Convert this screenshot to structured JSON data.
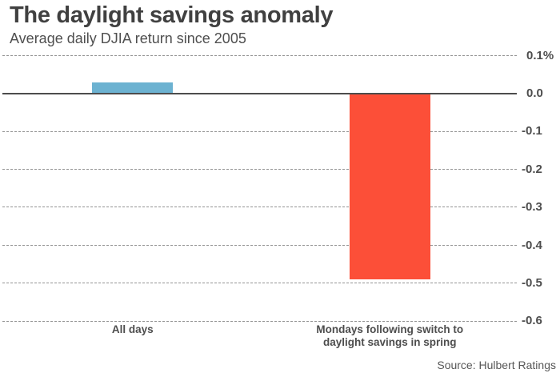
{
  "chart_data": {
    "type": "bar",
    "title": "The daylight savings anomaly",
    "subtitle": "Average daily DJIA return since 2005",
    "xlabel": "",
    "ylabel": "",
    "ylim": [
      -0.6,
      0.1
    ],
    "grid": "horizontal dashed gridlines, solid zero line",
    "legend": "none",
    "categories": [
      "All days",
      "Mondays following switch to daylight savings in spring"
    ],
    "values": [
      0.03,
      -0.49
    ],
    "bar_colors": [
      "#6cb2d1",
      "#fc4f38"
    ],
    "yticks": [
      {
        "value": 0.1,
        "label": "0.1%"
      },
      {
        "value": 0.0,
        "label": "0.0"
      },
      {
        "value": -0.1,
        "label": "-0.1"
      },
      {
        "value": -0.2,
        "label": "-0.2"
      },
      {
        "value": -0.3,
        "label": "-0.3"
      },
      {
        "value": -0.4,
        "label": "-0.4"
      },
      {
        "value": -0.5,
        "label": "-0.5"
      },
      {
        "value": -0.6,
        "label": "-0.6"
      }
    ],
    "source": "Source: Hulbert Ratings",
    "colors": {
      "title_text": "#404040",
      "subtitle_text": "#4f4f4f",
      "axis_text": "#4d4d4d",
      "zero_line": "#4c4c4c",
      "gridline": "#929292",
      "source_text": "#575757",
      "background": "#ffffff"
    }
  }
}
